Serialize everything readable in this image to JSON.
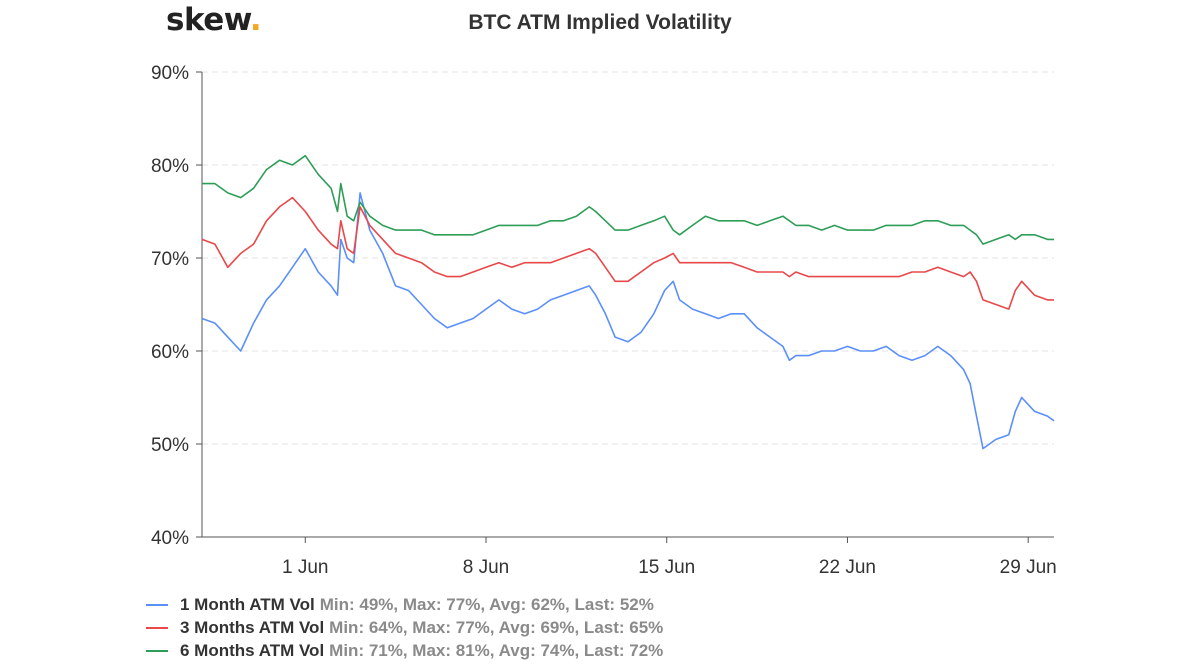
{
  "logo": {
    "text": "skew",
    "dot": "."
  },
  "chart_data": {
    "type": "line",
    "title": "BTC ATM Implied Volatility",
    "xlabel": "",
    "ylabel": "",
    "x_range": [
      "2020-05-28",
      "2020-06-30"
    ],
    "ylim": [
      40,
      90
    ],
    "y_ticks": [
      "40%",
      "50%",
      "60%",
      "70%",
      "80%",
      "90%"
    ],
    "y_tick_values": [
      40,
      50,
      60,
      70,
      80,
      90
    ],
    "x_ticks": [
      "1 Jun",
      "8 Jun",
      "15 Jun",
      "22 Jun",
      "29 Jun"
    ],
    "x_tick_dates": [
      "2020-06-01",
      "2020-06-08",
      "2020-06-15",
      "2020-06-22",
      "2020-06-29"
    ],
    "grid": "horizontal dashed",
    "legend_position": "bottom-left",
    "series": [
      {
        "name": "1 Month ATM Vol",
        "stats": "Min: 49%, Max: 77%, Avg: 62%, Last: 52%",
        "color": "#5b8ff9",
        "points": [
          [
            "2020-05-28T00:00",
            63.5
          ],
          [
            "2020-05-28T12:00",
            63.0
          ],
          [
            "2020-05-29T00:00",
            61.5
          ],
          [
            "2020-05-29T12:00",
            60.0
          ],
          [
            "2020-05-30T00:00",
            63.0
          ],
          [
            "2020-05-30T12:00",
            65.5
          ],
          [
            "2020-05-31T00:00",
            67.0
          ],
          [
            "2020-05-31T12:00",
            69.0
          ],
          [
            "2020-06-01T00:00",
            71.0
          ],
          [
            "2020-06-01T12:00",
            68.5
          ],
          [
            "2020-06-02T00:00",
            67.0
          ],
          [
            "2020-06-02T06:00",
            66.0
          ],
          [
            "2020-06-02T09:00",
            72.0
          ],
          [
            "2020-06-02T15:00",
            70.0
          ],
          [
            "2020-06-02T21:00",
            69.5
          ],
          [
            "2020-06-03T03:00",
            77.0
          ],
          [
            "2020-06-03T12:00",
            73.0
          ],
          [
            "2020-06-04T00:00",
            70.5
          ],
          [
            "2020-06-04T12:00",
            67.0
          ],
          [
            "2020-06-05T00:00",
            66.5
          ],
          [
            "2020-06-05T12:00",
            65.0
          ],
          [
            "2020-06-06T00:00",
            63.5
          ],
          [
            "2020-06-06T12:00",
            62.5
          ],
          [
            "2020-06-07T00:00",
            63.0
          ],
          [
            "2020-06-07T12:00",
            63.5
          ],
          [
            "2020-06-08T00:00",
            64.5
          ],
          [
            "2020-06-08T12:00",
            65.5
          ],
          [
            "2020-06-09T00:00",
            64.5
          ],
          [
            "2020-06-09T12:00",
            64.0
          ],
          [
            "2020-06-10T00:00",
            64.5
          ],
          [
            "2020-06-10T12:00",
            65.5
          ],
          [
            "2020-06-11T00:00",
            66.0
          ],
          [
            "2020-06-11T12:00",
            66.5
          ],
          [
            "2020-06-12T00:00",
            67.0
          ],
          [
            "2020-06-12T06:00",
            66.0
          ],
          [
            "2020-06-12T15:00",
            64.0
          ],
          [
            "2020-06-13T00:00",
            61.5
          ],
          [
            "2020-06-13T12:00",
            61.0
          ],
          [
            "2020-06-14T00:00",
            62.0
          ],
          [
            "2020-06-14T12:00",
            64.0
          ],
          [
            "2020-06-14T22:00",
            66.5
          ],
          [
            "2020-06-15T06:00",
            67.5
          ],
          [
            "2020-06-15T12:00",
            65.5
          ],
          [
            "2020-06-16T00:00",
            64.5
          ],
          [
            "2020-06-16T12:00",
            64.0
          ],
          [
            "2020-06-17T00:00",
            63.5
          ],
          [
            "2020-06-17T12:00",
            64.0
          ],
          [
            "2020-06-18T00:00",
            64.0
          ],
          [
            "2020-06-18T12:00",
            62.5
          ],
          [
            "2020-06-19T00:00",
            61.5
          ],
          [
            "2020-06-19T12:00",
            60.5
          ],
          [
            "2020-06-19T18:00",
            59.0
          ],
          [
            "2020-06-20T00:00",
            59.5
          ],
          [
            "2020-06-20T12:00",
            59.5
          ],
          [
            "2020-06-21T00:00",
            60.0
          ],
          [
            "2020-06-21T12:00",
            60.0
          ],
          [
            "2020-06-22T00:00",
            60.5
          ],
          [
            "2020-06-22T12:00",
            60.0
          ],
          [
            "2020-06-23T00:00",
            60.0
          ],
          [
            "2020-06-23T12:00",
            60.5
          ],
          [
            "2020-06-24T00:00",
            59.5
          ],
          [
            "2020-06-24T12:00",
            59.0
          ],
          [
            "2020-06-25T00:00",
            59.5
          ],
          [
            "2020-06-25T12:00",
            60.5
          ],
          [
            "2020-06-26T00:00",
            59.5
          ],
          [
            "2020-06-26T12:00",
            58.0
          ],
          [
            "2020-06-26T18:00",
            56.5
          ],
          [
            "2020-06-27T00:00",
            53.0
          ],
          [
            "2020-06-27T06:00",
            49.5
          ],
          [
            "2020-06-27T18:00",
            50.5
          ],
          [
            "2020-06-28T06:00",
            51.0
          ],
          [
            "2020-06-28T12:00",
            53.5
          ],
          [
            "2020-06-28T18:00",
            55.0
          ],
          [
            "2020-06-29T06:00",
            53.5
          ],
          [
            "2020-06-29T18:00",
            53.0
          ],
          [
            "2020-06-30T00:00",
            52.5
          ]
        ]
      },
      {
        "name": "3 Months ATM Vol",
        "stats": "Min: 64%, Max: 77%, Avg: 69%, Last: 65%",
        "color": "#e8484a",
        "points": [
          [
            "2020-05-28T00:00",
            72.0
          ],
          [
            "2020-05-28T12:00",
            71.5
          ],
          [
            "2020-05-29T00:00",
            69.0
          ],
          [
            "2020-05-29T12:00",
            70.5
          ],
          [
            "2020-05-30T00:00",
            71.5
          ],
          [
            "2020-05-30T12:00",
            74.0
          ],
          [
            "2020-05-31T00:00",
            75.5
          ],
          [
            "2020-05-31T12:00",
            76.5
          ],
          [
            "2020-06-01T00:00",
            75.0
          ],
          [
            "2020-06-01T12:00",
            73.0
          ],
          [
            "2020-06-02T00:00",
            71.5
          ],
          [
            "2020-06-02T06:00",
            71.0
          ],
          [
            "2020-06-02T09:00",
            74.0
          ],
          [
            "2020-06-02T15:00",
            71.0
          ],
          [
            "2020-06-02T21:00",
            70.5
          ],
          [
            "2020-06-03T03:00",
            75.5
          ],
          [
            "2020-06-03T12:00",
            73.5
          ],
          [
            "2020-06-04T00:00",
            72.0
          ],
          [
            "2020-06-04T12:00",
            70.5
          ],
          [
            "2020-06-05T00:00",
            70.0
          ],
          [
            "2020-06-05T12:00",
            69.5
          ],
          [
            "2020-06-06T00:00",
            68.5
          ],
          [
            "2020-06-06T12:00",
            68.0
          ],
          [
            "2020-06-07T00:00",
            68.0
          ],
          [
            "2020-06-07T12:00",
            68.5
          ],
          [
            "2020-06-08T00:00",
            69.0
          ],
          [
            "2020-06-08T12:00",
            69.5
          ],
          [
            "2020-06-09T00:00",
            69.0
          ],
          [
            "2020-06-09T12:00",
            69.5
          ],
          [
            "2020-06-10T00:00",
            69.5
          ],
          [
            "2020-06-10T12:00",
            69.5
          ],
          [
            "2020-06-11T00:00",
            70.0
          ],
          [
            "2020-06-11T12:00",
            70.5
          ],
          [
            "2020-06-12T00:00",
            71.0
          ],
          [
            "2020-06-12T06:00",
            70.5
          ],
          [
            "2020-06-12T15:00",
            69.0
          ],
          [
            "2020-06-13T00:00",
            67.5
          ],
          [
            "2020-06-13T12:00",
            67.5
          ],
          [
            "2020-06-14T00:00",
            68.5
          ],
          [
            "2020-06-14T12:00",
            69.5
          ],
          [
            "2020-06-14T22:00",
            70.0
          ],
          [
            "2020-06-15T06:00",
            70.5
          ],
          [
            "2020-06-15T12:00",
            69.5
          ],
          [
            "2020-06-16T00:00",
            69.5
          ],
          [
            "2020-06-16T12:00",
            69.5
          ],
          [
            "2020-06-17T00:00",
            69.5
          ],
          [
            "2020-06-17T12:00",
            69.5
          ],
          [
            "2020-06-18T00:00",
            69.0
          ],
          [
            "2020-06-18T12:00",
            68.5
          ],
          [
            "2020-06-19T00:00",
            68.5
          ],
          [
            "2020-06-19T12:00",
            68.5
          ],
          [
            "2020-06-19T18:00",
            68.0
          ],
          [
            "2020-06-20T00:00",
            68.5
          ],
          [
            "2020-06-20T12:00",
            68.0
          ],
          [
            "2020-06-21T00:00",
            68.0
          ],
          [
            "2020-06-21T12:00",
            68.0
          ],
          [
            "2020-06-22T00:00",
            68.0
          ],
          [
            "2020-06-22T12:00",
            68.0
          ],
          [
            "2020-06-23T00:00",
            68.0
          ],
          [
            "2020-06-23T12:00",
            68.0
          ],
          [
            "2020-06-24T00:00",
            68.0
          ],
          [
            "2020-06-24T12:00",
            68.5
          ],
          [
            "2020-06-25T00:00",
            68.5
          ],
          [
            "2020-06-25T12:00",
            69.0
          ],
          [
            "2020-06-26T00:00",
            68.5
          ],
          [
            "2020-06-26T12:00",
            68.0
          ],
          [
            "2020-06-26T18:00",
            68.5
          ],
          [
            "2020-06-27T00:00",
            67.5
          ],
          [
            "2020-06-27T06:00",
            65.5
          ],
          [
            "2020-06-27T18:00",
            65.0
          ],
          [
            "2020-06-28T06:00",
            64.5
          ],
          [
            "2020-06-28T12:00",
            66.5
          ],
          [
            "2020-06-28T18:00",
            67.5
          ],
          [
            "2020-06-29T06:00",
            66.0
          ],
          [
            "2020-06-29T18:00",
            65.5
          ],
          [
            "2020-06-30T00:00",
            65.5
          ]
        ]
      },
      {
        "name": "6 Months ATM Vol",
        "stats": "Min: 71%, Max: 81%, Avg: 74%, Last: 72%",
        "color": "#2e9e57",
        "points": [
          [
            "2020-05-28T00:00",
            78.0
          ],
          [
            "2020-05-28T12:00",
            78.0
          ],
          [
            "2020-05-29T00:00",
            77.0
          ],
          [
            "2020-05-29T12:00",
            76.5
          ],
          [
            "2020-05-30T00:00",
            77.5
          ],
          [
            "2020-05-30T12:00",
            79.5
          ],
          [
            "2020-05-31T00:00",
            80.5
          ],
          [
            "2020-05-31T12:00",
            80.0
          ],
          [
            "2020-06-01T00:00",
            81.0
          ],
          [
            "2020-06-01T12:00",
            79.0
          ],
          [
            "2020-06-02T00:00",
            77.5
          ],
          [
            "2020-06-02T06:00",
            75.0
          ],
          [
            "2020-06-02T09:00",
            78.0
          ],
          [
            "2020-06-02T15:00",
            74.5
          ],
          [
            "2020-06-02T21:00",
            74.0
          ],
          [
            "2020-06-03T03:00",
            76.0
          ],
          [
            "2020-06-03T12:00",
            74.5
          ],
          [
            "2020-06-04T00:00",
            73.5
          ],
          [
            "2020-06-04T12:00",
            73.0
          ],
          [
            "2020-06-05T00:00",
            73.0
          ],
          [
            "2020-06-05T12:00",
            73.0
          ],
          [
            "2020-06-06T00:00",
            72.5
          ],
          [
            "2020-06-06T12:00",
            72.5
          ],
          [
            "2020-06-07T00:00",
            72.5
          ],
          [
            "2020-06-07T12:00",
            72.5
          ],
          [
            "2020-06-08T00:00",
            73.0
          ],
          [
            "2020-06-08T12:00",
            73.5
          ],
          [
            "2020-06-09T00:00",
            73.5
          ],
          [
            "2020-06-09T12:00",
            73.5
          ],
          [
            "2020-06-10T00:00",
            73.5
          ],
          [
            "2020-06-10T12:00",
            74.0
          ],
          [
            "2020-06-11T00:00",
            74.0
          ],
          [
            "2020-06-11T12:00",
            74.5
          ],
          [
            "2020-06-12T00:00",
            75.5
          ],
          [
            "2020-06-12T06:00",
            75.0
          ],
          [
            "2020-06-12T15:00",
            74.0
          ],
          [
            "2020-06-13T00:00",
            73.0
          ],
          [
            "2020-06-13T12:00",
            73.0
          ],
          [
            "2020-06-14T00:00",
            73.5
          ],
          [
            "2020-06-14T12:00",
            74.0
          ],
          [
            "2020-06-14T22:00",
            74.5
          ],
          [
            "2020-06-15T06:00",
            73.0
          ],
          [
            "2020-06-15T12:00",
            72.5
          ],
          [
            "2020-06-16T00:00",
            73.5
          ],
          [
            "2020-06-16T12:00",
            74.5
          ],
          [
            "2020-06-17T00:00",
            74.0
          ],
          [
            "2020-06-17T12:00",
            74.0
          ],
          [
            "2020-06-18T00:00",
            74.0
          ],
          [
            "2020-06-18T12:00",
            73.5
          ],
          [
            "2020-06-19T00:00",
            74.0
          ],
          [
            "2020-06-19T12:00",
            74.5
          ],
          [
            "2020-06-19T18:00",
            74.0
          ],
          [
            "2020-06-20T00:00",
            73.5
          ],
          [
            "2020-06-20T12:00",
            73.5
          ],
          [
            "2020-06-21T00:00",
            73.0
          ],
          [
            "2020-06-21T12:00",
            73.5
          ],
          [
            "2020-06-22T00:00",
            73.0
          ],
          [
            "2020-06-22T12:00",
            73.0
          ],
          [
            "2020-06-23T00:00",
            73.0
          ],
          [
            "2020-06-23T12:00",
            73.5
          ],
          [
            "2020-06-24T00:00",
            73.5
          ],
          [
            "2020-06-24T12:00",
            73.5
          ],
          [
            "2020-06-25T00:00",
            74.0
          ],
          [
            "2020-06-25T12:00",
            74.0
          ],
          [
            "2020-06-26T00:00",
            73.5
          ],
          [
            "2020-06-26T12:00",
            73.5
          ],
          [
            "2020-06-26T18:00",
            73.0
          ],
          [
            "2020-06-27T00:00",
            72.5
          ],
          [
            "2020-06-27T06:00",
            71.5
          ],
          [
            "2020-06-27T18:00",
            72.0
          ],
          [
            "2020-06-28T06:00",
            72.5
          ],
          [
            "2020-06-28T12:00",
            72.0
          ],
          [
            "2020-06-28T18:00",
            72.5
          ],
          [
            "2020-06-29T06:00",
            72.5
          ],
          [
            "2020-06-29T18:00",
            72.0
          ],
          [
            "2020-06-30T00:00",
            72.0
          ]
        ]
      }
    ]
  }
}
